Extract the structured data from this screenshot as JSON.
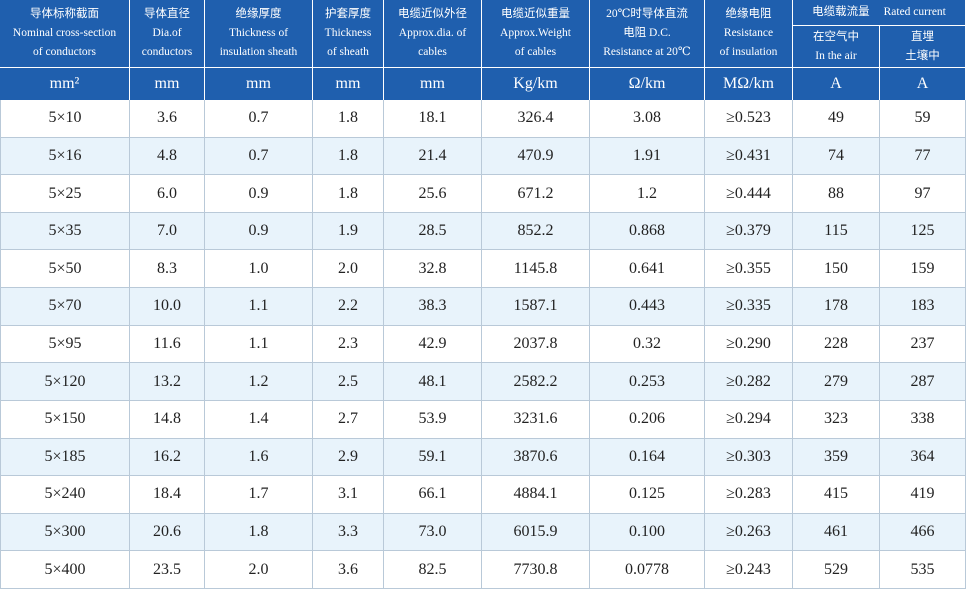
{
  "header": {
    "columns": [
      [
        "导体标称截面",
        "Nominal cross-section",
        "of conductors"
      ],
      [
        "导体直径",
        "Dia.of",
        "conductors"
      ],
      [
        "绝缘厚度",
        "Thickness of",
        "insulation sheath"
      ],
      [
        "护套厚度",
        "Thickness",
        "of sheath"
      ],
      [
        "电缆近似外径",
        "Approx.dia. of",
        "cables"
      ],
      [
        "电缆近似重量",
        "Approx.Weight",
        "of cables"
      ],
      [
        "20℃时导体直流",
        "电阻 D.C.",
        "Resistance at 20℃"
      ],
      [
        "绝缘电阻",
        "Resistance",
        "of insulation"
      ]
    ],
    "current": {
      "title": [
        "电缆载流量",
        "Rated current"
      ],
      "sub": [
        [
          "在空气中",
          "In the air"
        ],
        [
          "直埋",
          "土壤中"
        ]
      ]
    }
  },
  "units": [
    "mm²",
    "mm",
    "mm",
    "mm",
    "mm",
    "Kg/km",
    "Ω/km",
    "MΩ/km",
    "A",
    "A"
  ],
  "rows": [
    [
      "5×10",
      "3.6",
      "0.7",
      "1.8",
      "18.1",
      "326.4",
      "3.08",
      "≥0.523",
      "49",
      "59"
    ],
    [
      "5×16",
      "4.8",
      "0.7",
      "1.8",
      "21.4",
      "470.9",
      "1.91",
      "≥0.431",
      "74",
      "77"
    ],
    [
      "5×25",
      "6.0",
      "0.9",
      "1.8",
      "25.6",
      "671.2",
      "1.2",
      "≥0.444",
      "88",
      "97"
    ],
    [
      "5×35",
      "7.0",
      "0.9",
      "1.9",
      "28.5",
      "852.2",
      "0.868",
      "≥0.379",
      "115",
      "125"
    ],
    [
      "5×50",
      "8.3",
      "1.0",
      "2.0",
      "32.8",
      "1145.8",
      "0.641",
      "≥0.355",
      "150",
      "159"
    ],
    [
      "5×70",
      "10.0",
      "1.1",
      "2.2",
      "38.3",
      "1587.1",
      "0.443",
      "≥0.335",
      "178",
      "183"
    ],
    [
      "5×95",
      "11.6",
      "1.1",
      "2.3",
      "42.9",
      "2037.8",
      "0.32",
      "≥0.290",
      "228",
      "237"
    ],
    [
      "5×120",
      "13.2",
      "1.2",
      "2.5",
      "48.1",
      "2582.2",
      "0.253",
      "≥0.282",
      "279",
      "287"
    ],
    [
      "5×150",
      "14.8",
      "1.4",
      "2.7",
      "53.9",
      "3231.6",
      "0.206",
      "≥0.294",
      "323",
      "338"
    ],
    [
      "5×185",
      "16.2",
      "1.6",
      "2.9",
      "59.1",
      "3870.6",
      "0.164",
      "≥0.303",
      "359",
      "364"
    ],
    [
      "5×240",
      "18.4",
      "1.7",
      "3.1",
      "66.1",
      "4884.1",
      "0.125",
      "≥0.283",
      "415",
      "419"
    ],
    [
      "5×300",
      "20.6",
      "1.8",
      "3.3",
      "73.0",
      "6015.9",
      "0.100",
      "≥0.263",
      "461",
      "466"
    ],
    [
      "5×400",
      "23.5",
      "2.0",
      "3.6",
      "82.5",
      "7730.8",
      "0.0778",
      "≥0.243",
      "529",
      "535"
    ]
  ]
}
